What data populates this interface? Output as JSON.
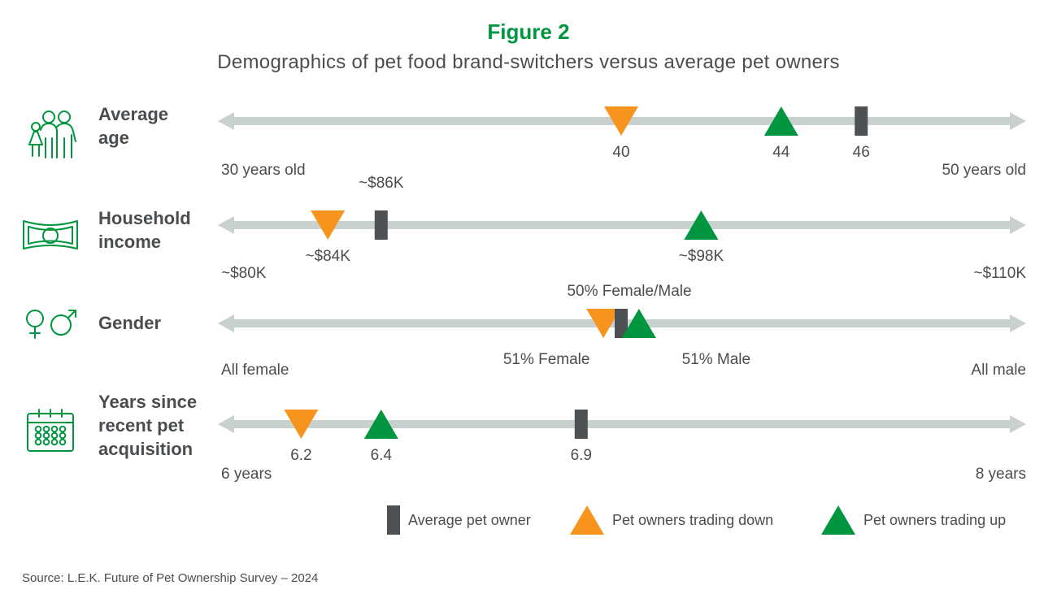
{
  "title": "Figure 2",
  "subtitle": "Demographics of pet food brand-switchers versus average pet owners",
  "source": "Source: L.E.K. Future of Pet Ownership Survey – 2024",
  "colors": {
    "title": "#00963f",
    "track": "#c9d1ce",
    "average": "#4d5154",
    "trading_down": "#f7941d",
    "trading_up": "#00963f",
    "icon": "#00963f"
  },
  "legend": [
    {
      "key": "average",
      "label": "Average pet owner",
      "marker": "bar"
    },
    {
      "key": "trading_down",
      "label": "Pet owners trading down",
      "marker": "triangle"
    },
    {
      "key": "trading_up",
      "label": "Pet owners trading up",
      "marker": "triangle"
    }
  ],
  "chart_data": {
    "type": "dot-plot",
    "rows": [
      {
        "label_lines": [
          "Average",
          "age"
        ],
        "icon": "family-icon",
        "axis_min": 30,
        "axis_max": 50,
        "min_label": "30 years old",
        "max_label": "50 years old",
        "markers": [
          {
            "series": "trading_down",
            "value": 40,
            "label": "40"
          },
          {
            "series": "trading_up",
            "value": 44,
            "label": "44"
          },
          {
            "series": "average",
            "value": 46,
            "label": "46"
          }
        ]
      },
      {
        "label_lines": [
          "Household",
          "income"
        ],
        "icon": "banknote-icon",
        "axis_min": 80,
        "axis_max": 110,
        "min_label": "~$80K",
        "max_label": "~$110K",
        "markers": [
          {
            "series": "trading_down",
            "value": 84,
            "label": "~$84K"
          },
          {
            "series": "average",
            "value": 86,
            "label": "~$86K"
          },
          {
            "series": "trading_up",
            "value": 98,
            "label": "~$98K"
          }
        ]
      },
      {
        "label_lines": [
          "Gender"
        ],
        "icon": "gender-icon",
        "axis_min": 0,
        "axis_max": 100,
        "min_label": "All female",
        "max_label": "All male",
        "markers": [
          {
            "series": "trading_down",
            "value": 49,
            "label": "51% Female"
          },
          {
            "series": "average",
            "value": 50,
            "label": "50% Female/Male"
          },
          {
            "series": "trading_up",
            "value": 51,
            "label": "51% Male"
          }
        ]
      },
      {
        "label_lines": [
          "Years since",
          "recent pet",
          "acquisition"
        ],
        "icon": "calendar-icon",
        "axis_min": 6,
        "axis_max": 8,
        "min_label": "6 years",
        "max_label": "8 years",
        "markers": [
          {
            "series": "trading_down",
            "value": 6.2,
            "label": "6.2"
          },
          {
            "series": "trading_up",
            "value": 6.4,
            "label": "6.4"
          },
          {
            "series": "average",
            "value": 6.9,
            "label": "6.9"
          }
        ]
      }
    ]
  }
}
